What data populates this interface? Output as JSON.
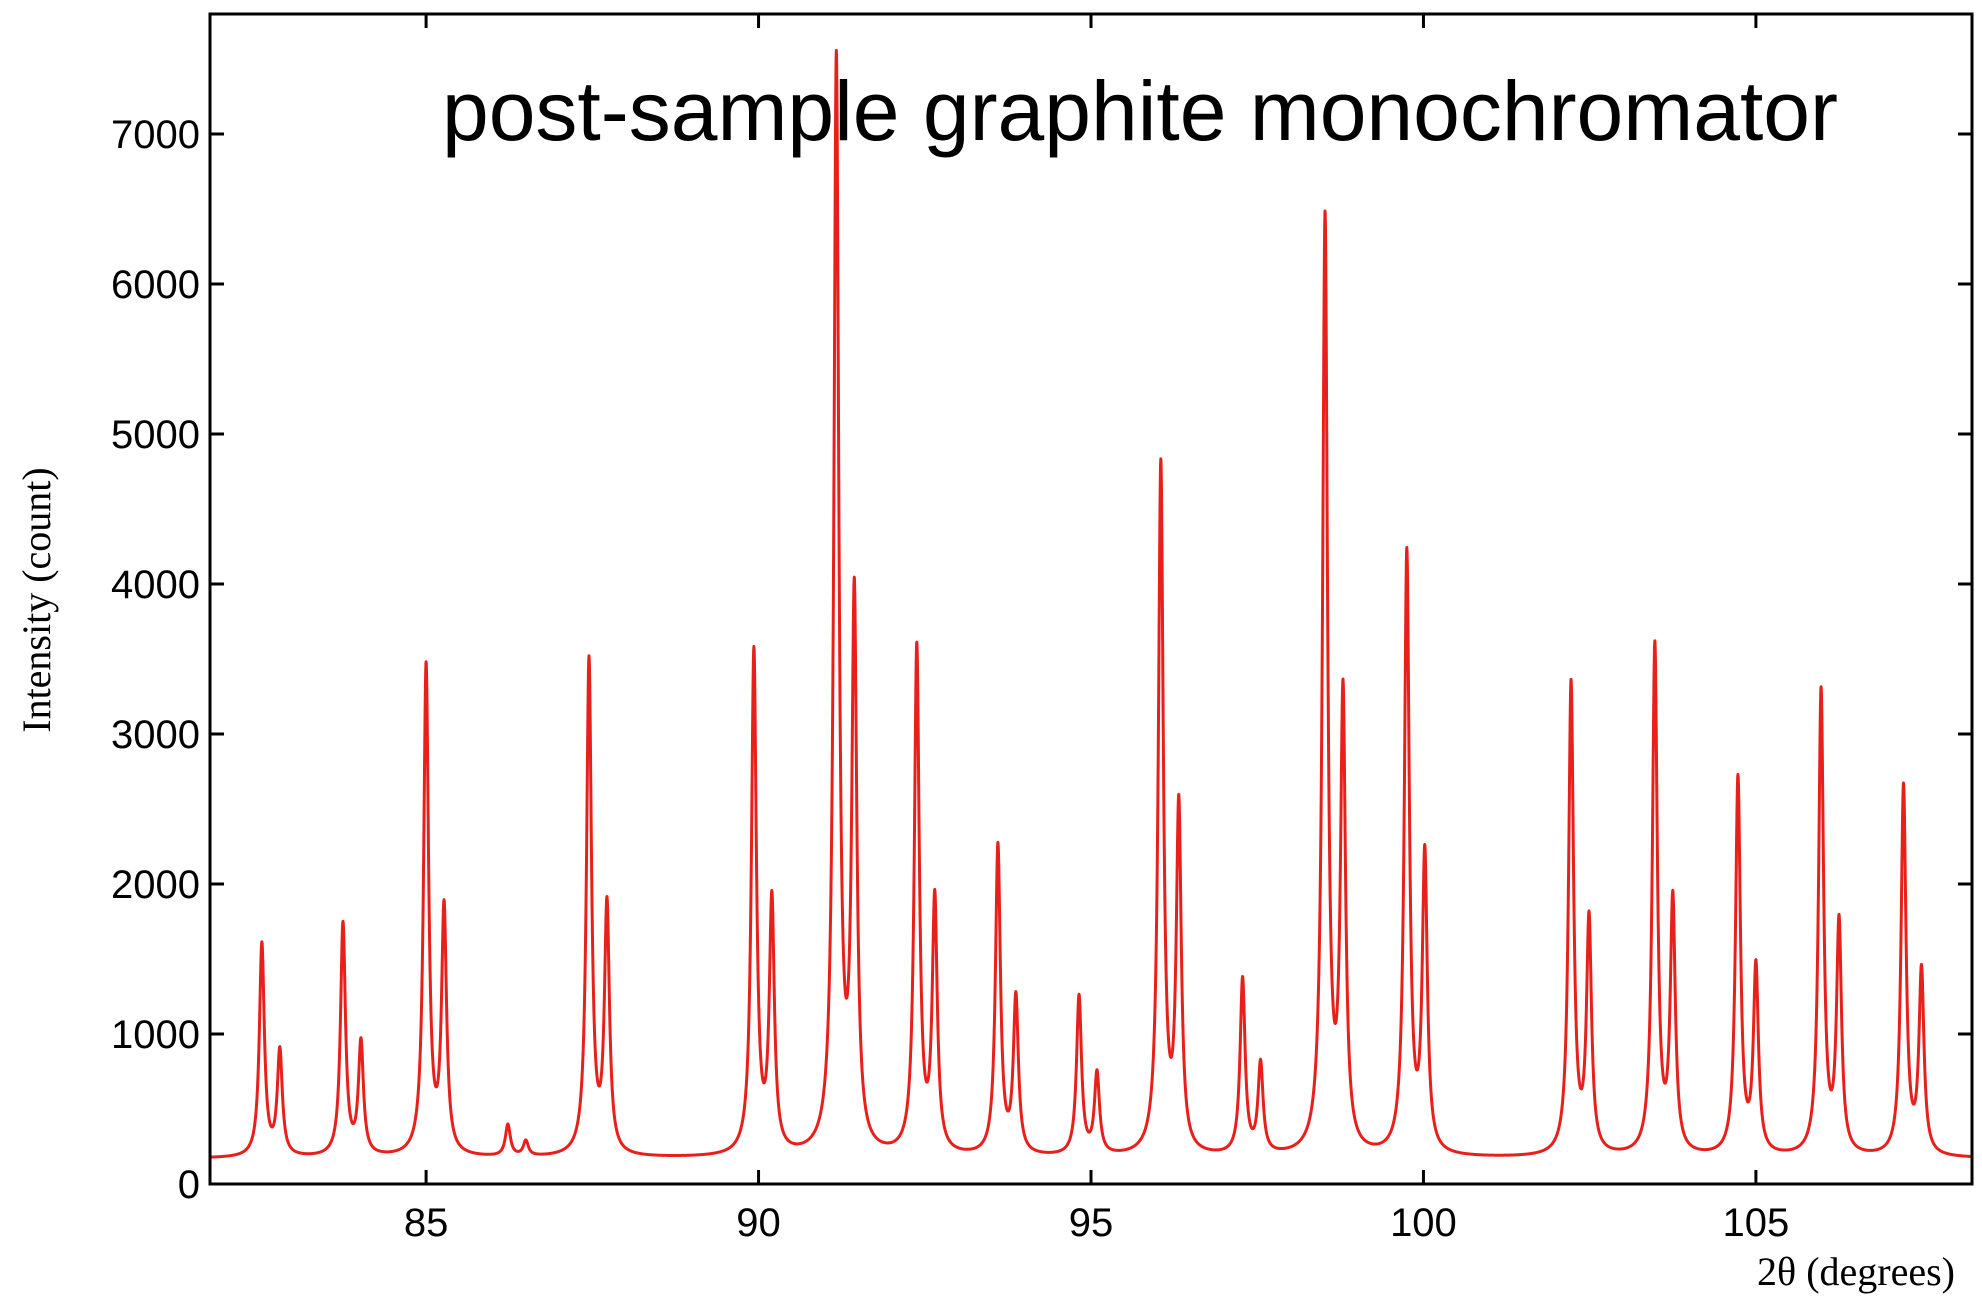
{
  "chart_data": {
    "type": "line",
    "title": "post-sample graphite monochromator",
    "xlabel": "2θ (degrees)",
    "ylabel": "Intensity (count)",
    "xlim": [
      81.75,
      108.25
    ],
    "ylim": [
      0,
      7800
    ],
    "x_ticks": [
      85,
      90,
      95,
      100,
      105
    ],
    "y_ticks": [
      0,
      1000,
      2000,
      3000,
      4000,
      5000,
      6000,
      7000
    ],
    "x_tick_labels": [
      "85",
      "90",
      "95",
      "100",
      "105"
    ],
    "y_tick_labels": [
      "0",
      "1000",
      "2000",
      "3000",
      "4000",
      "5000",
      "6000",
      "7000"
    ],
    "grid": false,
    "legend": "none",
    "line_color": "#e8201c",
    "baseline": 170,
    "series": [
      {
        "peaks": [
          {
            "x": 82.53,
            "y": 1590
          },
          {
            "x": 82.8,
            "y": 870
          },
          {
            "x": 83.75,
            "y": 1720
          },
          {
            "x": 84.02,
            "y": 920
          },
          {
            "x": 85.0,
            "y": 3430
          },
          {
            "x": 85.27,
            "y": 1800
          },
          {
            "x": 86.23,
            "y": 380
          },
          {
            "x": 86.5,
            "y": 270
          },
          {
            "x": 87.45,
            "y": 3470
          },
          {
            "x": 87.72,
            "y": 1820
          },
          {
            "x": 89.93,
            "y": 3520
          },
          {
            "x": 90.2,
            "y": 1840
          },
          {
            "x": 91.17,
            "y": 7440
          },
          {
            "x": 91.44,
            "y": 3830
          },
          {
            "x": 92.38,
            "y": 3540
          },
          {
            "x": 92.65,
            "y": 1850
          },
          {
            "x": 93.6,
            "y": 2230
          },
          {
            "x": 93.87,
            "y": 1210
          },
          {
            "x": 94.82,
            "y": 1230
          },
          {
            "x": 95.09,
            "y": 710
          },
          {
            "x": 96.05,
            "y": 4760
          },
          {
            "x": 96.32,
            "y": 2460
          },
          {
            "x": 97.28,
            "y": 1340
          },
          {
            "x": 97.55,
            "y": 770
          },
          {
            "x": 98.52,
            "y": 6390
          },
          {
            "x": 98.79,
            "y": 3180
          },
          {
            "x": 99.75,
            "y": 4170
          },
          {
            "x": 100.02,
            "y": 2140
          },
          {
            "x": 102.22,
            "y": 3310
          },
          {
            "x": 102.49,
            "y": 1720
          },
          {
            "x": 103.48,
            "y": 3560
          },
          {
            "x": 103.75,
            "y": 1850
          },
          {
            "x": 104.73,
            "y": 2680
          },
          {
            "x": 105.0,
            "y": 1410
          },
          {
            "x": 105.98,
            "y": 3260
          },
          {
            "x": 106.25,
            "y": 1700
          },
          {
            "x": 107.22,
            "y": 2630
          },
          {
            "x": 107.49,
            "y": 1390
          }
        ]
      }
    ]
  }
}
